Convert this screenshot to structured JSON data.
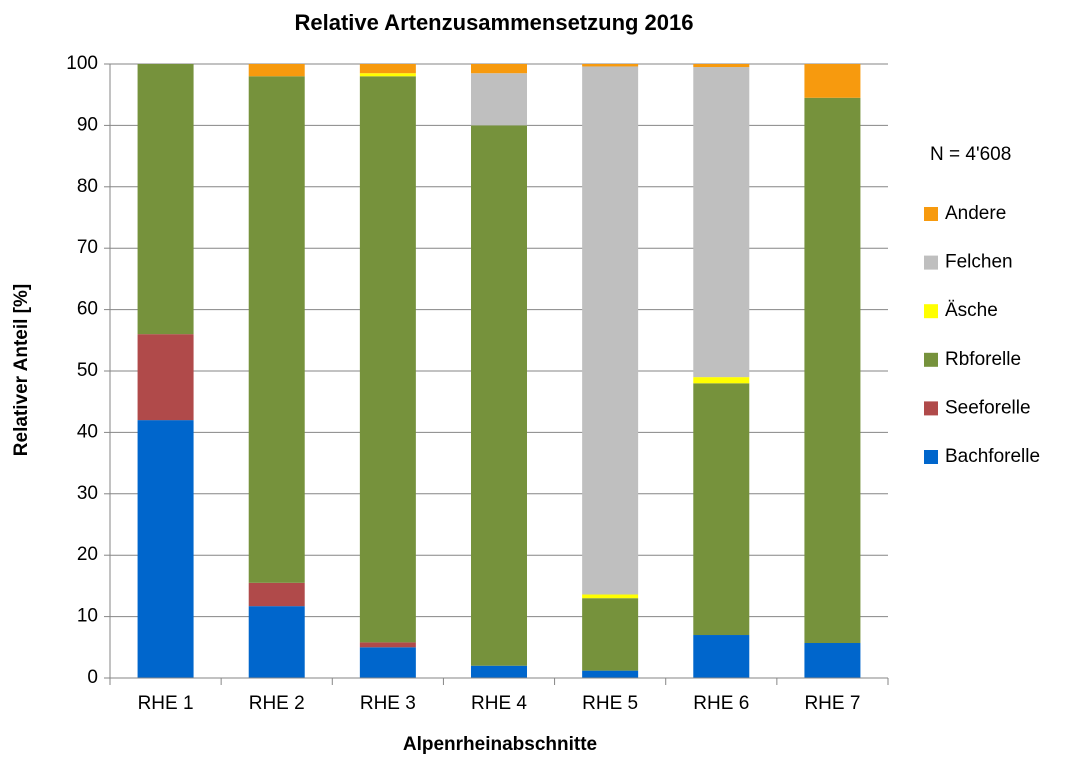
{
  "chart_data": {
    "type": "stacked_bar",
    "title": "Relative Artenzusammensetzung 2016",
    "x_label": "Alpenrheinabschnitte",
    "y_label": "Relativer Anteil [%]",
    "annotation": "N = 4'608",
    "categories": [
      "RHE 1",
      "RHE 2",
      "RHE 3",
      "RHE 4",
      "RHE 5",
      "RHE 6",
      "RHE 7"
    ],
    "series": [
      {
        "name": "Bachforelle",
        "color": "#0066cc",
        "values": [
          42,
          11.7,
          5,
          2,
          1.2,
          7,
          5.7
        ]
      },
      {
        "name": "Seeforelle",
        "color": "#b04a4a",
        "values": [
          14,
          3.8,
          0.8,
          0,
          0,
          0,
          0
        ]
      },
      {
        "name": "Rbforelle",
        "color": "#76923c",
        "values": [
          44,
          82.5,
          92.2,
          88,
          11.8,
          41,
          88.8
        ]
      },
      {
        "name": "Äsche",
        "color": "#ffff00",
        "values": [
          0,
          0,
          0.5,
          0,
          0.6,
          1,
          0
        ]
      },
      {
        "name": "Felchen",
        "color": "#bfbfbf",
        "values": [
          0,
          0,
          0,
          8.5,
          86,
          50.5,
          0
        ]
      },
      {
        "name": "Andere",
        "color": "#f79a0e",
        "values": [
          0,
          2,
          1.5,
          1.5,
          0.4,
          0.5,
          5.5
        ]
      }
    ],
    "ylim": [
      0,
      100
    ],
    "yticks": [
      0,
      10,
      20,
      30,
      40,
      50,
      60,
      70,
      80,
      90,
      100
    ],
    "grid": true,
    "legend": "right"
  }
}
